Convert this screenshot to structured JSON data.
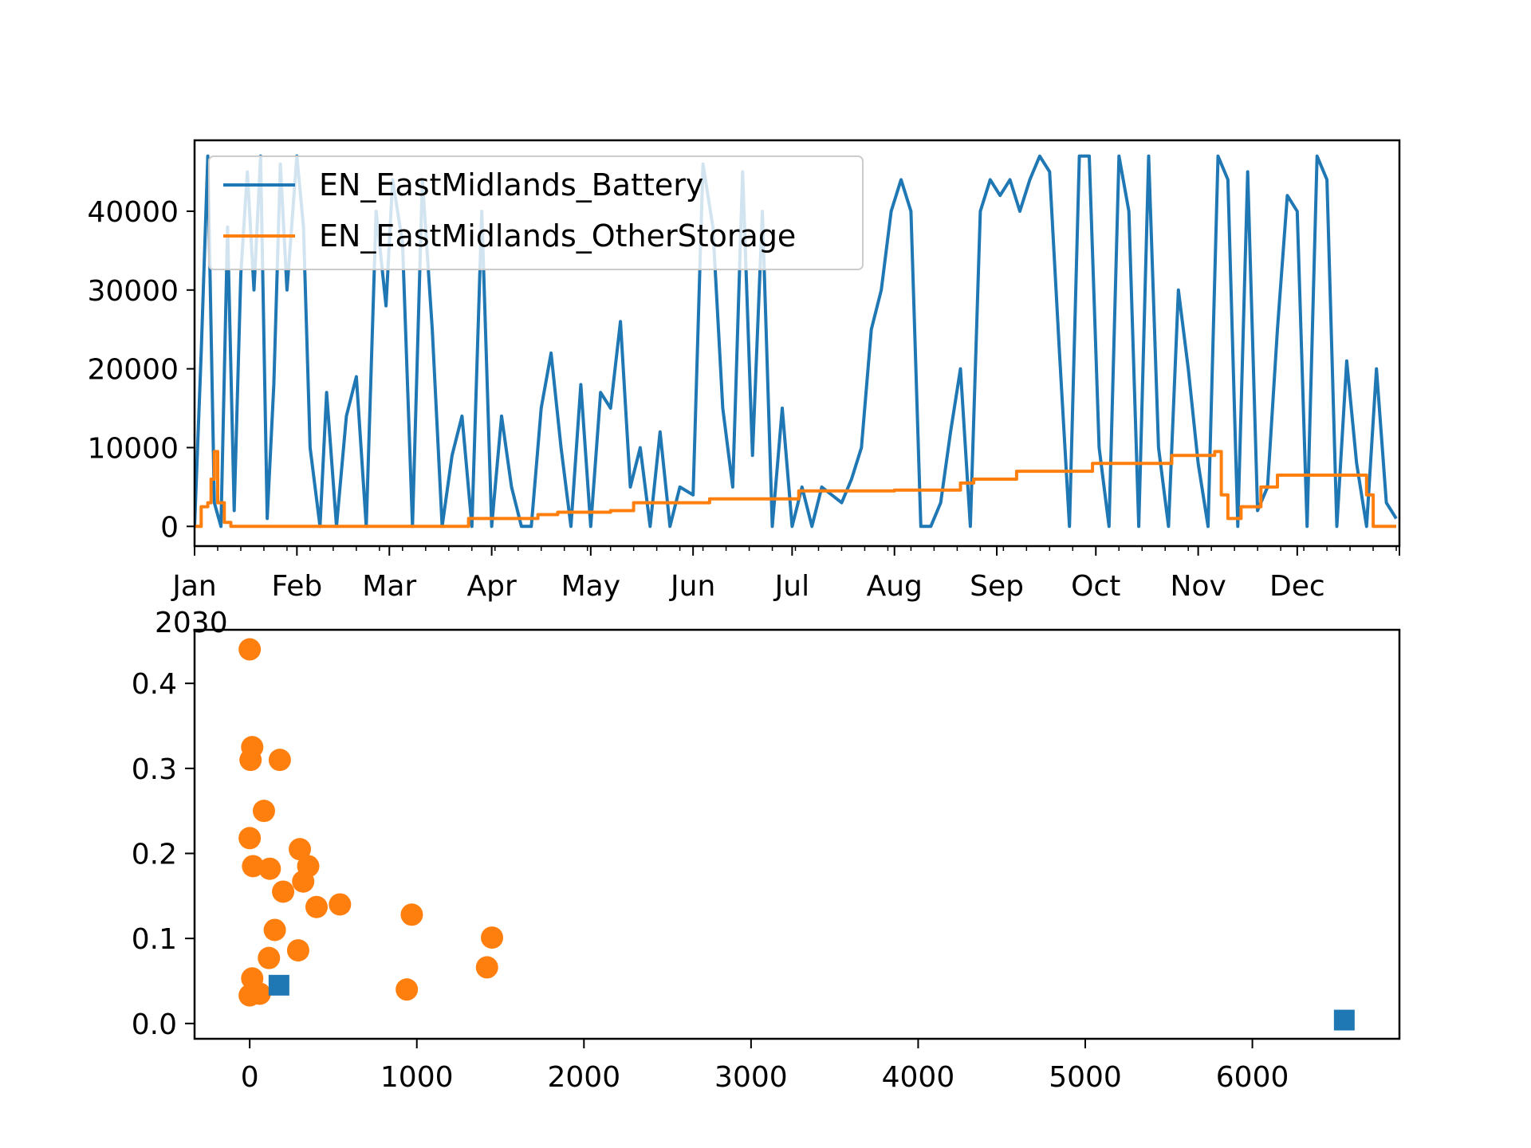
{
  "colors": {
    "battery": "#1f77b4",
    "other_storage": "#ff7f0e",
    "axes": "#000000",
    "background": "#ffffff"
  },
  "chart_data": [
    {
      "type": "line",
      "title": "",
      "xlabel": "",
      "ylabel": "",
      "x_axis": "date",
      "year_label": "2030",
      "x_tick_labels": [
        "Jan",
        "Feb",
        "Mar",
        "Apr",
        "May",
        "Jun",
        "Jul",
        "Aug",
        "Sep",
        "Oct",
        "Nov",
        "Dec"
      ],
      "y_ticks": [
        0,
        10000,
        20000,
        30000,
        40000
      ],
      "ylim": [
        -2500,
        49000
      ],
      "legend_placement": "upper-left",
      "series": [
        {
          "name": "EN_EastMidlands_Battery",
          "color": "#1f77b4",
          "x": [
            "2030-01-01",
            "2030-01-03",
            "2030-01-05",
            "2030-01-07",
            "2030-01-09",
            "2030-01-11",
            "2030-01-13",
            "2030-01-15",
            "2030-01-17",
            "2030-01-19",
            "2030-01-21",
            "2030-01-23",
            "2030-01-25",
            "2030-01-27",
            "2030-01-29",
            "2030-02-01",
            "2030-02-03",
            "2030-02-05",
            "2030-02-08",
            "2030-02-10",
            "2030-02-13",
            "2030-02-16",
            "2030-02-19",
            "2030-02-22",
            "2030-02-25",
            "2030-02-28",
            "2030-03-02",
            "2030-03-05",
            "2030-03-08",
            "2030-03-11",
            "2030-03-14",
            "2030-03-17",
            "2030-03-20",
            "2030-03-23",
            "2030-03-26",
            "2030-03-29",
            "2030-04-01",
            "2030-04-04",
            "2030-04-07",
            "2030-04-10",
            "2030-04-13",
            "2030-04-16",
            "2030-04-19",
            "2030-04-22",
            "2030-04-25",
            "2030-04-28",
            "2030-05-01",
            "2030-05-04",
            "2030-05-07",
            "2030-05-10",
            "2030-05-13",
            "2030-05-16",
            "2030-05-19",
            "2030-05-22",
            "2030-05-25",
            "2030-05-28",
            "2030-06-01",
            "2030-06-04",
            "2030-06-07",
            "2030-06-10",
            "2030-06-13",
            "2030-06-16",
            "2030-06-19",
            "2030-06-22",
            "2030-06-25",
            "2030-06-28",
            "2030-07-01",
            "2030-07-04",
            "2030-07-07",
            "2030-07-10",
            "2030-07-13",
            "2030-07-16",
            "2030-07-19",
            "2030-07-22",
            "2030-07-25",
            "2030-07-28",
            "2030-07-31",
            "2030-08-03",
            "2030-08-06",
            "2030-08-09",
            "2030-08-12",
            "2030-08-15",
            "2030-08-18",
            "2030-08-21",
            "2030-08-24",
            "2030-08-27",
            "2030-08-30",
            "2030-09-02",
            "2030-09-05",
            "2030-09-08",
            "2030-09-11",
            "2030-09-14",
            "2030-09-17",
            "2030-09-20",
            "2030-09-23",
            "2030-09-26",
            "2030-09-29",
            "2030-10-02",
            "2030-10-05",
            "2030-10-08",
            "2030-10-11",
            "2030-10-14",
            "2030-10-17",
            "2030-10-20",
            "2030-10-23",
            "2030-10-26",
            "2030-10-29",
            "2030-11-01",
            "2030-11-04",
            "2030-11-07",
            "2030-11-10",
            "2030-11-13",
            "2030-11-16",
            "2030-11-19",
            "2030-11-22",
            "2030-11-25",
            "2030-11-28",
            "2030-12-01",
            "2030-12-04",
            "2030-12-07",
            "2030-12-10",
            "2030-12-13",
            "2030-12-16",
            "2030-12-19",
            "2030-12-22",
            "2030-12-25",
            "2030-12-28",
            "2030-12-31"
          ],
          "y": [
            0,
            22000,
            47000,
            3000,
            0,
            38000,
            2000,
            32000,
            45000,
            30000,
            47000,
            1000,
            18000,
            46000,
            30000,
            47000,
            38000,
            10000,
            0,
            17000,
            0,
            14000,
            19000,
            0,
            40000,
            28000,
            44000,
            36000,
            0,
            44000,
            25000,
            0,
            9000,
            14000,
            0,
            40000,
            0,
            14000,
            5000,
            0,
            0,
            15000,
            22000,
            10000,
            0,
            18000,
            0,
            17000,
            15000,
            26000,
            5000,
            10000,
            0,
            12000,
            0,
            5000,
            4000,
            46000,
            38000,
            15000,
            5000,
            45000,
            9000,
            40000,
            0,
            15000,
            0,
            5000,
            0,
            5000,
            4000,
            3000,
            6000,
            10000,
            25000,
            30000,
            40000,
            44000,
            40000,
            0,
            0,
            3000,
            12000,
            20000,
            0,
            40000,
            44000,
            42000,
            44000,
            40000,
            44000,
            47000,
            45000,
            22000,
            0,
            47000,
            47000,
            10000,
            0,
            47000,
            40000,
            0,
            47000,
            10000,
            0,
            30000,
            20000,
            8000,
            0,
            47000,
            44000,
            0,
            45000,
            2000,
            5000,
            25000,
            42000,
            40000,
            0,
            47000,
            44000,
            0,
            21000,
            8000,
            0,
            20000,
            3000,
            1000
          ],
          "ylim_note": ""
        },
        {
          "name": "EN_EastMidlands_OtherStorage",
          "color": "#ff7f0e",
          "x": [
            "2030-01-01",
            "2030-01-03",
            "2030-01-05",
            "2030-01-06",
            "2030-01-07",
            "2030-01-08",
            "2030-01-10",
            "2030-01-12",
            "2030-03-25",
            "2030-04-15",
            "2030-04-21",
            "2030-05-07",
            "2030-05-14",
            "2030-06-06",
            "2030-07-03",
            "2030-08-01",
            "2030-08-21",
            "2030-08-25",
            "2030-09-07",
            "2030-09-30",
            "2030-10-24",
            "2030-11-06",
            "2030-11-08",
            "2030-11-10",
            "2030-11-14",
            "2030-11-20",
            "2030-11-25",
            "2030-12-18",
            "2030-12-22",
            "2030-12-24",
            "2030-12-31"
          ],
          "y": [
            0,
            2500,
            3000,
            6000,
            9500,
            3000,
            500,
            0,
            1000,
            1500,
            1800,
            2000,
            3000,
            3500,
            4500,
            4600,
            5500,
            6000,
            7000,
            8000,
            9000,
            9500,
            4000,
            1000,
            2500,
            5000,
            6500,
            6500,
            4000,
            0,
            0
          ]
        }
      ]
    },
    {
      "type": "scatter",
      "title": "",
      "xlabel": "",
      "ylabel": "",
      "x_ticks": [
        0,
        1000,
        2000,
        3000,
        4000,
        5000,
        6000
      ],
      "y_ticks": [
        0.0,
        0.1,
        0.2,
        0.3,
        0.4
      ],
      "y_tick_labels": [
        "0.0",
        "0.1",
        "0.2",
        "0.3",
        "0.4"
      ],
      "xlim": [
        -330,
        6880
      ],
      "ylim": [
        -0.018,
        0.463
      ],
      "series": [
        {
          "marker": "circle",
          "color": "#ff7f0e",
          "points": [
            [
              0,
              0.44
            ],
            [
              15,
              0.325
            ],
            [
              5,
              0.31
            ],
            [
              180,
              0.31
            ],
            [
              85,
              0.25
            ],
            [
              0,
              0.218
            ],
            [
              300,
              0.205
            ],
            [
              20,
              0.185
            ],
            [
              120,
              0.182
            ],
            [
              350,
              0.185
            ],
            [
              320,
              0.167
            ],
            [
              200,
              0.155
            ],
            [
              400,
              0.137
            ],
            [
              540,
              0.14
            ],
            [
              970,
              0.128
            ],
            [
              150,
              0.11
            ],
            [
              290,
              0.086
            ],
            [
              115,
              0.077
            ],
            [
              1450,
              0.101
            ],
            [
              1420,
              0.066
            ],
            [
              15,
              0.053
            ],
            [
              60,
              0.035
            ],
            [
              0,
              0.033
            ],
            [
              940,
              0.04
            ]
          ]
        },
        {
          "marker": "square",
          "color": "#1f77b4",
          "points": [
            [
              175,
              0.045
            ],
            [
              6550,
              0.004
            ]
          ]
        }
      ]
    }
  ]
}
